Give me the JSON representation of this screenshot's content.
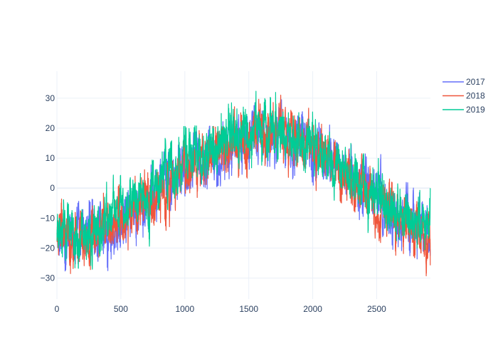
{
  "chart_data": {
    "type": "line",
    "title": "",
    "xlabel": "",
    "ylabel": "",
    "xlim": [
      0,
      2920
    ],
    "ylim": [
      -37,
      39
    ],
    "x_ticks": [
      0,
      500,
      1000,
      1500,
      2000,
      2500
    ],
    "y_ticks": [
      -30,
      -20,
      -10,
      0,
      10,
      20,
      30
    ],
    "x_tick_labels": [
      "0",
      "500",
      "1000",
      "1500",
      "2000",
      "2500"
    ],
    "y_tick_labels": [
      "−30",
      "−20",
      "−10",
      "0",
      "10",
      "20",
      "30"
    ],
    "grid": true,
    "legend_position": "top-right",
    "n_points": 2920,
    "x_step": 1,
    "series": [
      {
        "name": "2017",
        "color": "#636efa",
        "trend": [
          [
            0,
            -14
          ],
          [
            250,
            -19
          ],
          [
            400,
            -12
          ],
          [
            700,
            -4
          ],
          [
            1000,
            6
          ],
          [
            1300,
            12
          ],
          [
            1600,
            18
          ],
          [
            1850,
            18
          ],
          [
            2100,
            12
          ],
          [
            2300,
            4
          ],
          [
            2500,
            -3
          ],
          [
            2700,
            -12
          ],
          [
            2900,
            -14
          ]
        ],
        "noise_amplitude": 8,
        "seed": 17
      },
      {
        "name": "2018",
        "color": "#ef553b",
        "trend": [
          [
            0,
            -15
          ],
          [
            250,
            -18
          ],
          [
            400,
            -13
          ],
          [
            700,
            -5
          ],
          [
            1000,
            6
          ],
          [
            1300,
            13
          ],
          [
            1600,
            18
          ],
          [
            1850,
            16
          ],
          [
            2100,
            9
          ],
          [
            2300,
            2
          ],
          [
            2500,
            -4
          ],
          [
            2700,
            -11
          ],
          [
            2900,
            -17
          ]
        ],
        "noise_amplitude": 8,
        "seed": 18
      },
      {
        "name": "2019",
        "color": "#00cc96",
        "trend": [
          [
            0,
            -13
          ],
          [
            250,
            -19
          ],
          [
            400,
            -9
          ],
          [
            700,
            -2
          ],
          [
            1000,
            9
          ],
          [
            1300,
            15
          ],
          [
            1600,
            20
          ],
          [
            1850,
            17
          ],
          [
            2100,
            10
          ],
          [
            2300,
            5
          ],
          [
            2500,
            -2
          ],
          [
            2700,
            -11
          ],
          [
            2900,
            -12
          ]
        ],
        "noise_amplitude": 8,
        "seed": 19
      }
    ]
  }
}
